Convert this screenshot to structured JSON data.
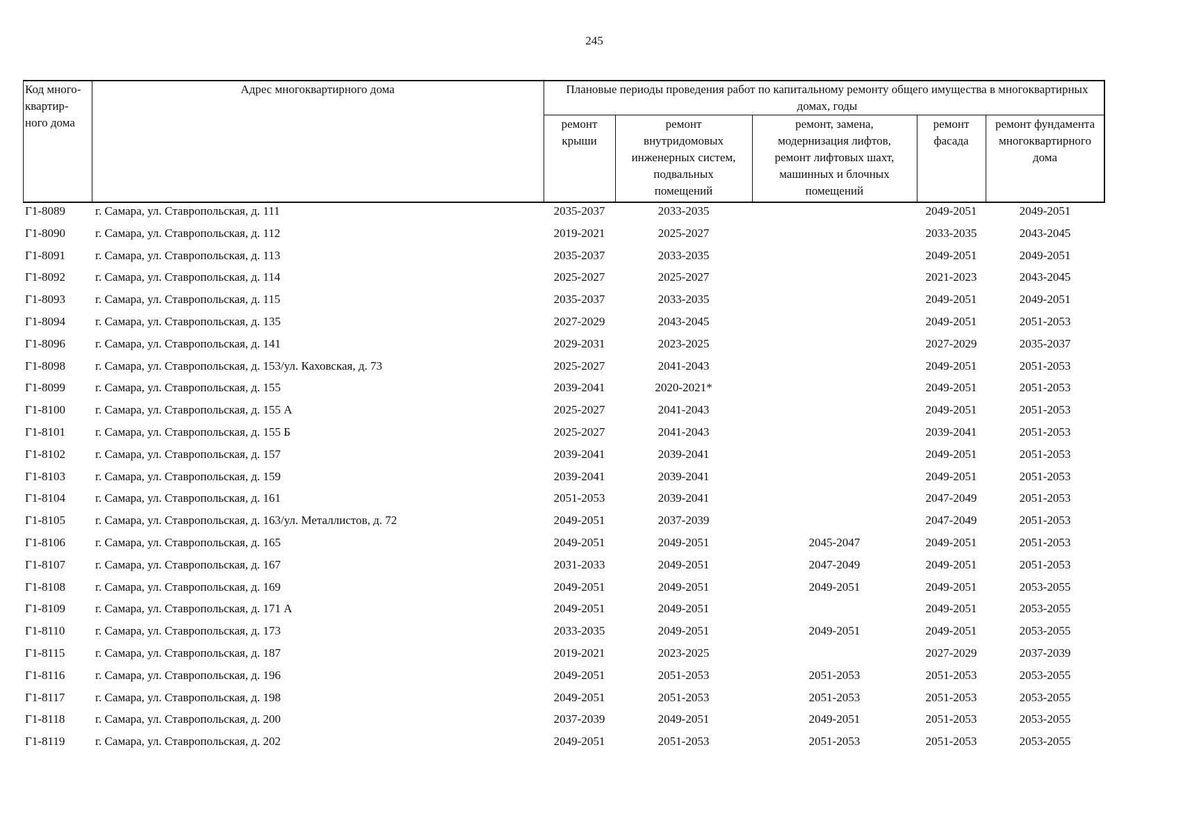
{
  "page_number": "245",
  "table": {
    "headers": {
      "code": "Код много-\nквартир-\nного дома",
      "address": "Адрес многоквартирного дома",
      "group": "Плановые периоды проведения работ по капитальному ремонту общего имущества в многоквартирных домах, годы",
      "columns": [
        "ремонт\nкрыши",
        "ремонт\nвнутридомовых\nинженерных систем,\nподвальных\nпомещений",
        "ремонт, замена,\nмодернизация лифтов,\nремонт лифтовых шахт,\nмашинных и блочных\nпомещений",
        "ремонт\nфасада",
        "ремонт фундамента\nмногоквартирного\nдома"
      ]
    },
    "rows": [
      [
        "Г1-8089",
        "г. Самара, ул. Ставропольская, д. 111",
        "2035-2037",
        "2033-2035",
        null,
        "2049-2051",
        "2049-2051"
      ],
      [
        "Г1-8090",
        "г. Самара, ул. Ставропольская, д. 112",
        "2019-2021",
        "2025-2027",
        null,
        "2033-2035",
        "2043-2045"
      ],
      [
        "Г1-8091",
        "г. Самара, ул. Ставропольская, д. 113",
        "2035-2037",
        "2033-2035",
        null,
        "2049-2051",
        "2049-2051"
      ],
      [
        "Г1-8092",
        "г. Самара, ул. Ставропольская, д. 114",
        "2025-2027",
        "2025-2027",
        null,
        "2021-2023",
        "2043-2045"
      ],
      [
        "Г1-8093",
        "г. Самара, ул. Ставропольская, д. 115",
        "2035-2037",
        "2033-2035",
        null,
        "2049-2051",
        "2049-2051"
      ],
      [
        "Г1-8094",
        "г. Самара, ул. Ставропольская, д. 135",
        "2027-2029",
        "2043-2045",
        null,
        "2049-2051",
        "2051-2053"
      ],
      [
        "Г1-8096",
        "г. Самара, ул. Ставропольская, д. 141",
        "2029-2031",
        "2023-2025",
        null,
        "2027-2029",
        "2035-2037"
      ],
      [
        "Г1-8098",
        "г. Самара, ул. Ставропольская, д. 153/ул. Каховская, д. 73",
        "2025-2027",
        "2041-2043",
        null,
        "2049-2051",
        "2051-2053"
      ],
      [
        "Г1-8099",
        "г. Самара, ул. Ставропольская, д. 155",
        "2039-2041",
        "2020-2021*",
        null,
        "2049-2051",
        "2051-2053"
      ],
      [
        "Г1-8100",
        "г. Самара, ул. Ставропольская, д. 155 А",
        "2025-2027",
        "2041-2043",
        null,
        "2049-2051",
        "2051-2053"
      ],
      [
        "Г1-8101",
        "г. Самара, ул. Ставропольская, д. 155 Б",
        "2025-2027",
        "2041-2043",
        null,
        "2039-2041",
        "2051-2053"
      ],
      [
        "Г1-8102",
        "г. Самара, ул. Ставропольская, д. 157",
        "2039-2041",
        "2039-2041",
        null,
        "2049-2051",
        "2051-2053"
      ],
      [
        "Г1-8103",
        "г. Самара, ул. Ставропольская, д. 159",
        "2039-2041",
        "2039-2041",
        null,
        "2049-2051",
        "2051-2053"
      ],
      [
        "Г1-8104",
        "г. Самара, ул. Ставропольская, д. 161",
        "2051-2053",
        "2039-2041",
        null,
        "2047-2049",
        "2051-2053"
      ],
      [
        "Г1-8105",
        "г. Самара, ул. Ставропольская, д. 163/ул. Металлистов, д. 72",
        "2049-2051",
        "2037-2039",
        null,
        "2047-2049",
        "2051-2053"
      ],
      [
        "Г1-8106",
        "г. Самара, ул. Ставропольская, д. 165",
        "2049-2051",
        "2049-2051",
        "2045-2047",
        "2049-2051",
        "2051-2053"
      ],
      [
        "Г1-8107",
        "г. Самара, ул. Ставропольская, д. 167",
        "2031-2033",
        "2049-2051",
        "2047-2049",
        "2049-2051",
        "2051-2053"
      ],
      [
        "Г1-8108",
        "г. Самара, ул. Ставропольская, д. 169",
        "2049-2051",
        "2049-2051",
        "2049-2051",
        "2049-2051",
        "2053-2055"
      ],
      [
        "Г1-8109",
        "г. Самара, ул. Ставропольская, д. 171 А",
        "2049-2051",
        "2049-2051",
        null,
        "2049-2051",
        "2053-2055"
      ],
      [
        "Г1-8110",
        "г. Самара, ул. Ставропольская, д. 173",
        "2033-2035",
        "2049-2051",
        "2049-2051",
        "2049-2051",
        "2053-2055"
      ],
      [
        "Г1-8115",
        "г. Самара, ул. Ставропольская, д. 187",
        "2019-2021",
        "2023-2025",
        null,
        "2027-2029",
        "2037-2039"
      ],
      [
        "Г1-8116",
        "г. Самара, ул. Ставропольская, д. 196",
        "2049-2051",
        "2051-2053",
        "2051-2053",
        "2051-2053",
        "2053-2055"
      ],
      [
        "Г1-8117",
        "г. Самара, ул. Ставропольская, д. 198",
        "2049-2051",
        "2051-2053",
        "2051-2053",
        "2051-2053",
        "2053-2055"
      ],
      [
        "Г1-8118",
        "г. Самара, ул. Ставропольская, д. 200",
        "2037-2039",
        "2049-2051",
        "2049-2051",
        "2051-2053",
        "2053-2055"
      ],
      [
        "Г1-8119",
        "г. Самара, ул. Ставропольская, д. 202",
        "2049-2051",
        "2051-2053",
        "2051-2053",
        "2051-2053",
        "2053-2055"
      ]
    ]
  }
}
